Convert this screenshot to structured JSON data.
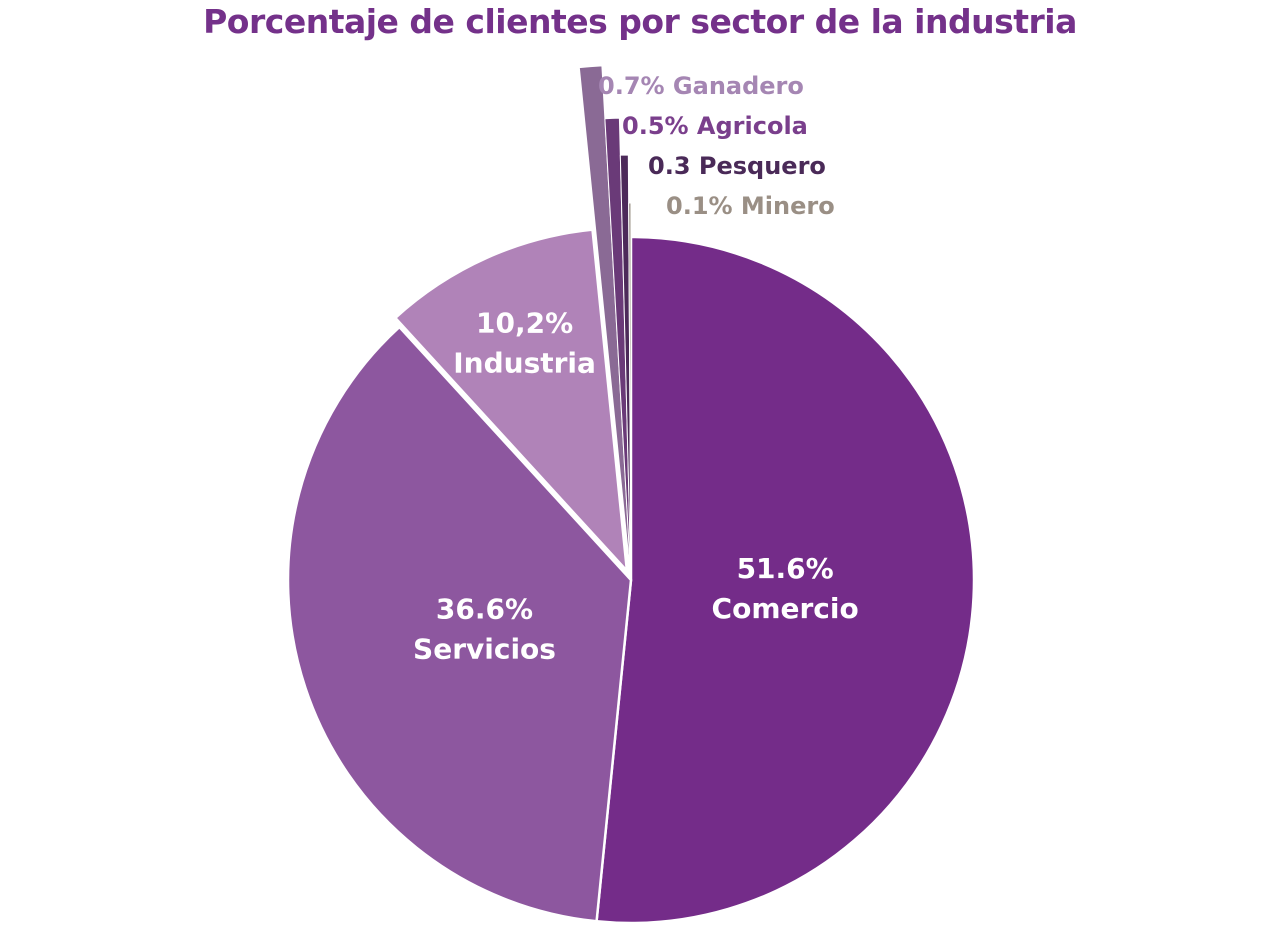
{
  "chart_data": {
    "type": "pie",
    "title": "Porcentaje de clientes por sector de la industria",
    "start_angle_deg": 0,
    "direction": "clockwise",
    "slices": [
      {
        "name": "Comercio",
        "value": 51.6,
        "color": "#742c89",
        "label_lines": [
          "51.6%",
          "Comercio"
        ],
        "label_color": "#ffffff",
        "style": "inside"
      },
      {
        "name": "Servicios",
        "value": 36.6,
        "color": "#8d579f",
        "label_lines": [
          "36.6%",
          "Servicios"
        ],
        "label_color": "#ffffff",
        "style": "inside"
      },
      {
        "name": "Industria",
        "value": 10.2,
        "color": "#b083b8",
        "label_lines": [
          "10,2%",
          "Industria"
        ],
        "label_color": "#ffffff",
        "style": "inside-exploded"
      },
      {
        "name": "Ganadero",
        "value": 0.7,
        "color": "#8a6a95",
        "label": "0.7% Ganadero",
        "label_color": "#a586b3",
        "style": "callout"
      },
      {
        "name": "Agricola",
        "value": 0.5,
        "color": "#6a3a78",
        "label": "0.5% Agricola",
        "label_color": "#7a3f8c",
        "style": "callout"
      },
      {
        "name": "Pesquero",
        "value": 0.3,
        "color": "#4d2a5a",
        "label": "0.3 Pesquero",
        "label_color": "#4a2a58",
        "style": "callout"
      },
      {
        "name": "Minero",
        "value": 0.1,
        "color": "#9c948a",
        "label": "0.1% Minero",
        "label_color": "#9a8f85",
        "style": "callout"
      }
    ]
  }
}
